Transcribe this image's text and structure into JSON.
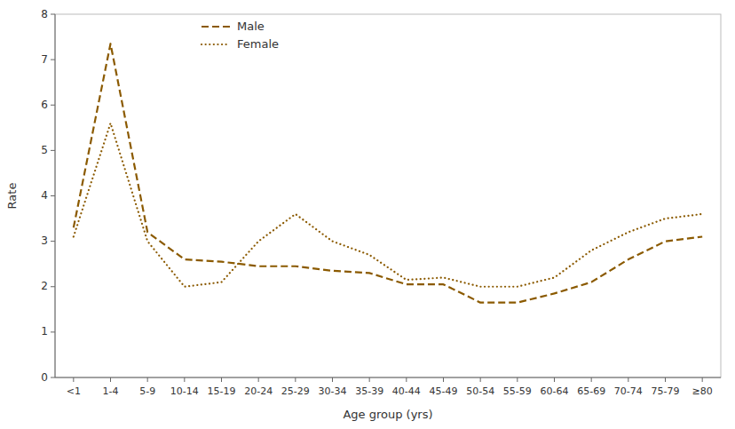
{
  "chart_data": {
    "type": "line",
    "categories": [
      "<1",
      "1-4",
      "5-9",
      "10-14",
      "15-19",
      "20-24",
      "25-29",
      "30-34",
      "35-39",
      "40-44",
      "45-49",
      "50-54",
      "55-59",
      "60-64",
      "65-69",
      "70-74",
      "75-79",
      "≥80"
    ],
    "series": [
      {
        "name": "Male",
        "color": "#8B5A00",
        "line_style": "dashed",
        "values": [
          3.3,
          7.35,
          3.2,
          2.6,
          2.55,
          2.45,
          2.45,
          2.35,
          2.3,
          2.05,
          2.05,
          1.65,
          1.65,
          1.85,
          2.1,
          2.6,
          3.0,
          3.1
        ]
      },
      {
        "name": "Female",
        "color": "#8B5A00",
        "line_style": "dotted",
        "values": [
          3.1,
          5.6,
          3.0,
          2.0,
          2.1,
          3.0,
          3.6,
          3.0,
          2.7,
          2.15,
          2.2,
          2.0,
          2.0,
          2.2,
          2.8,
          3.2,
          3.5,
          3.6
        ]
      }
    ],
    "xlabel": "Age group (yrs)",
    "ylabel": "Rate",
    "ylim": [
      0,
      8
    ],
    "yticks": [
      0,
      1,
      2,
      3,
      4,
      5,
      6,
      7,
      8
    ],
    "legend": "upper left",
    "grid": false
  }
}
